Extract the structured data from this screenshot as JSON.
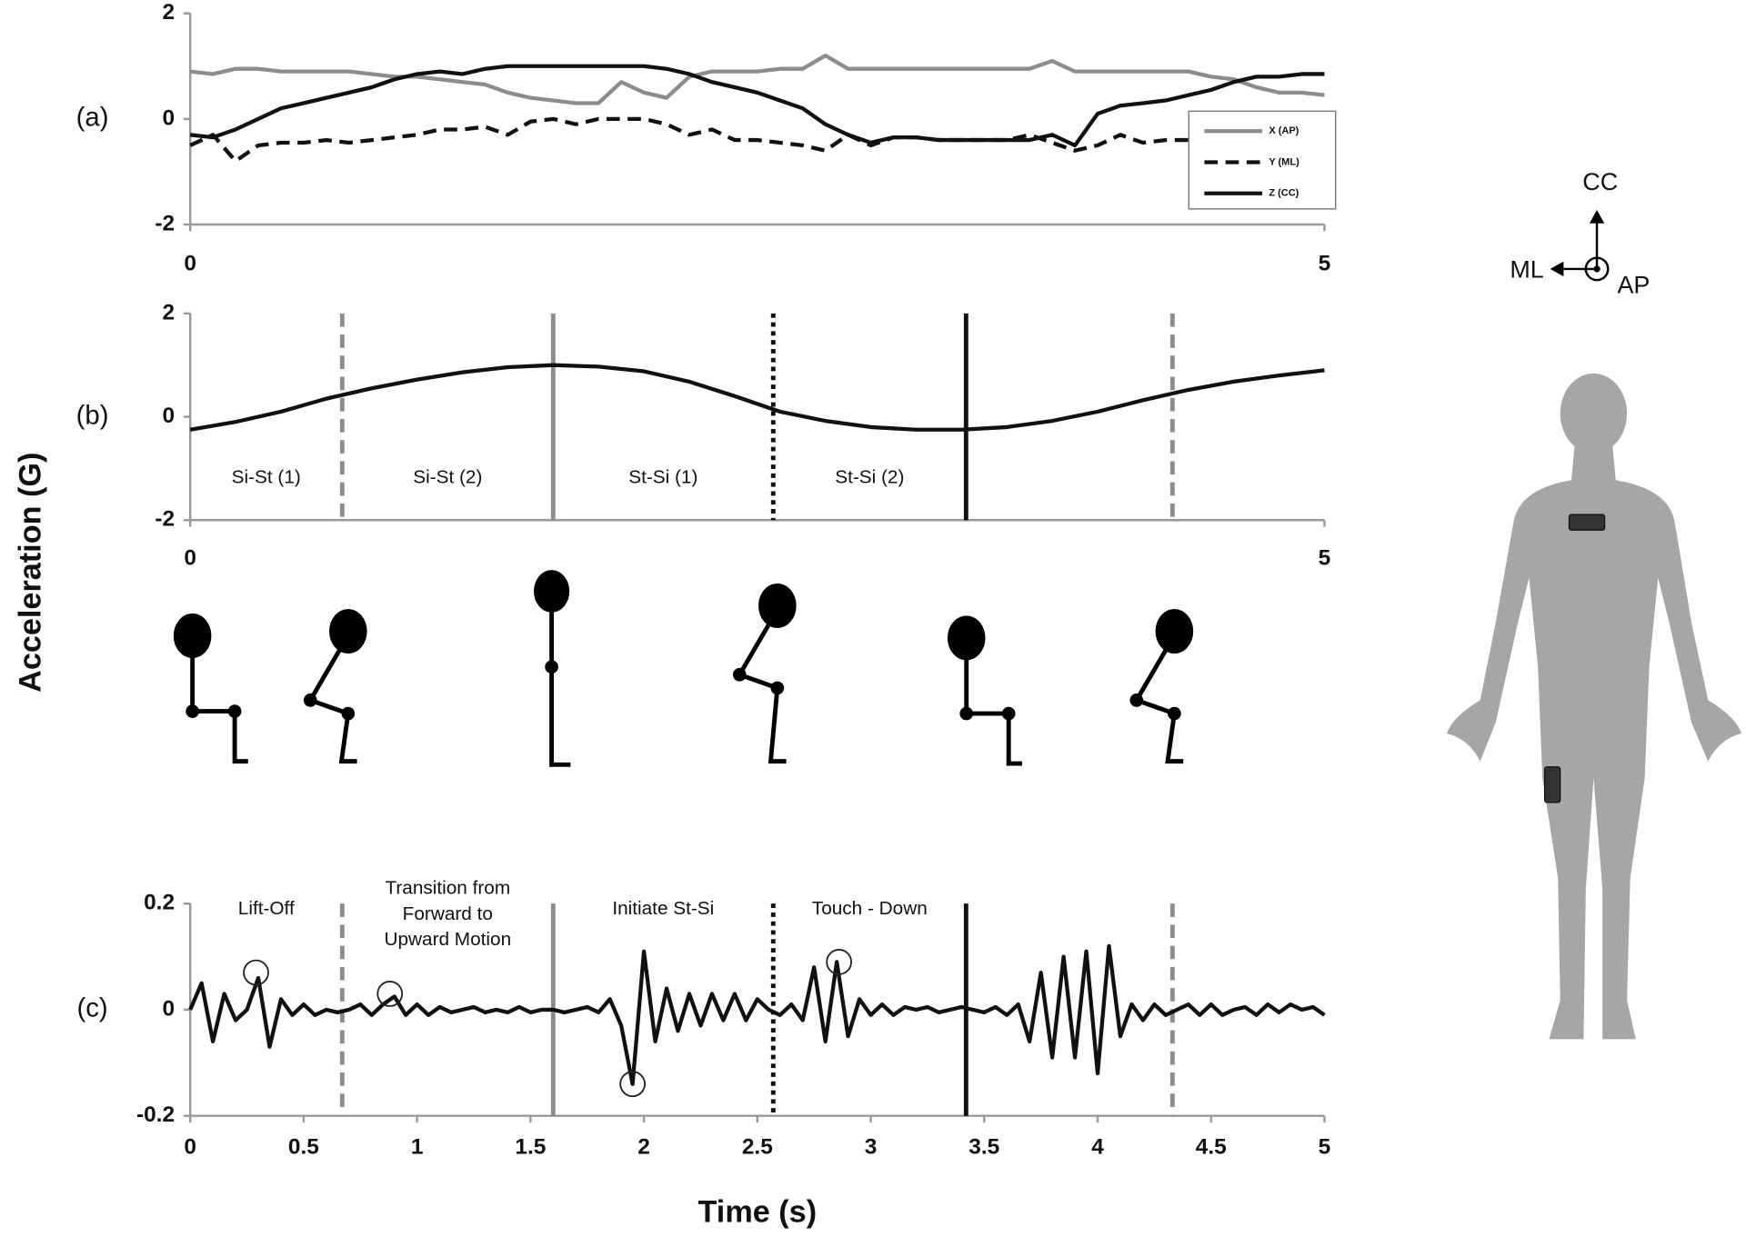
{
  "figure": {
    "ylabel": "Acceleration (G)",
    "xlabel": "Time (s)"
  },
  "diagram": {
    "labels": [
      "CC",
      "ML",
      "AP"
    ]
  },
  "chart_data": [
    {
      "type": "line",
      "label": "(a)",
      "xlim": [
        0,
        5
      ],
      "xticks": [
        0,
        5
      ],
      "ylim": [
        -2,
        2
      ],
      "yticks": [
        -2,
        0,
        2
      ],
      "legend": "upper right",
      "x": [
        0,
        0.1,
        0.2,
        0.3,
        0.4,
        0.5,
        0.6,
        0.7,
        0.8,
        0.9,
        1,
        1.1,
        1.2,
        1.3,
        1.4,
        1.5,
        1.6,
        1.7,
        1.8,
        1.9,
        2,
        2.1,
        2.2,
        2.3,
        2.4,
        2.5,
        2.6,
        2.7,
        2.8,
        2.9,
        3,
        3.1,
        3.2,
        3.3,
        3.4,
        3.5,
        3.6,
        3.7,
        3.8,
        3.9,
        4,
        4.1,
        4.2,
        4.3,
        4.4,
        4.5,
        4.6,
        4.7,
        4.8,
        4.9,
        5
      ],
      "series": [
        {
          "name": "X (AP)",
          "color": "#8c8c8c",
          "dash": "solid",
          "values": [
            0.9,
            0.85,
            0.95,
            0.95,
            0.9,
            0.9,
            0.9,
            0.9,
            0.85,
            0.8,
            0.8,
            0.75,
            0.7,
            0.65,
            0.5,
            0.4,
            0.35,
            0.3,
            0.3,
            0.7,
            0.5,
            0.4,
            0.8,
            0.9,
            0.9,
            0.9,
            0.95,
            0.95,
            1.2,
            0.95,
            0.95,
            0.95,
            0.95,
            0.95,
            0.95,
            0.95,
            0.95,
            0.95,
            1.1,
            0.9,
            0.9,
            0.9,
            0.9,
            0.9,
            0.9,
            0.8,
            0.75,
            0.6,
            0.5,
            0.5,
            0.45
          ]
        },
        {
          "name": "Y (ML)",
          "color": "#111111",
          "dash": "dashed",
          "values": [
            -0.5,
            -0.3,
            -0.8,
            -0.5,
            -0.45,
            -0.45,
            -0.4,
            -0.45,
            -0.4,
            -0.35,
            -0.3,
            -0.2,
            -0.2,
            -0.15,
            -0.3,
            -0.05,
            0,
            -0.1,
            0,
            0,
            0,
            -0.1,
            -0.3,
            -0.2,
            -0.4,
            -0.4,
            -0.45,
            -0.5,
            -0.6,
            -0.3,
            -0.5,
            -0.35,
            -0.35,
            -0.4,
            -0.4,
            -0.4,
            -0.4,
            -0.3,
            -0.45,
            -0.6,
            -0.5,
            -0.3,
            -0.45,
            -0.4,
            -0.4,
            -0.35,
            -0.35,
            -0.35,
            -0.35,
            -0.3,
            -0.3
          ]
        },
        {
          "name": "Z (CC)",
          "color": "#111111",
          "dash": "solid",
          "values": [
            -0.3,
            -0.35,
            -0.2,
            0,
            0.2,
            0.3,
            0.4,
            0.5,
            0.6,
            0.75,
            0.85,
            0.9,
            0.85,
            0.95,
            1,
            1,
            1,
            1,
            1,
            1,
            1,
            0.95,
            0.85,
            0.7,
            0.6,
            0.5,
            0.35,
            0.2,
            -0.1,
            -0.3,
            -0.45,
            -0.35,
            -0.35,
            -0.4,
            -0.4,
            -0.4,
            -0.4,
            -0.4,
            -0.3,
            -0.5,
            0.1,
            0.25,
            0.3,
            0.35,
            0.45,
            0.55,
            0.7,
            0.8,
            0.8,
            0.85,
            0.85
          ]
        }
      ]
    },
    {
      "type": "line",
      "label": "(b)",
      "xlim": [
        0,
        5
      ],
      "xticks": [
        0,
        5
      ],
      "ylim": [
        -2,
        2
      ],
      "yticks": [
        -2,
        0,
        2
      ],
      "x": [
        0,
        0.2,
        0.4,
        0.6,
        0.8,
        1,
        1.2,
        1.4,
        1.6,
        1.8,
        2,
        2.2,
        2.4,
        2.6,
        2.8,
        3,
        3.2,
        3.4,
        3.6,
        3.8,
        4,
        4.2,
        4.4,
        4.6,
        4.8,
        5
      ],
      "series": [
        {
          "color": "#111111",
          "dash": "solid",
          "values": [
            -0.25,
            -0.1,
            0.1,
            0.35,
            0.55,
            0.72,
            0.86,
            0.96,
            1,
            0.97,
            0.88,
            0.68,
            0.4,
            0.1,
            -0.08,
            -0.2,
            -0.25,
            -0.25,
            -0.2,
            -0.08,
            0.1,
            0.32,
            0.52,
            0.68,
            0.8,
            0.9
          ]
        }
      ],
      "events": [
        {
          "x": 0.67,
          "color": "#8c8c8c",
          "dash": "dashed"
        },
        {
          "x": 1.6,
          "color": "#8c8c8c",
          "dash": "solid"
        },
        {
          "x": 2.57,
          "color": "#111111",
          "dash": "dotted"
        },
        {
          "x": 3.42,
          "color": "#111111",
          "dash": "solid"
        },
        {
          "x": 4.33,
          "color": "#8c8c8c",
          "dash": "dashed"
        }
      ],
      "annotations": [
        [
          "Si-St (1)"
        ],
        [
          "Si-St (2)"
        ],
        [
          "St-Si (1)"
        ],
        [
          "St-Si (2)"
        ]
      ]
    },
    {
      "type": "line",
      "label": "(c)",
      "xlim": [
        0,
        5
      ],
      "xticks": [
        0,
        0.5,
        1,
        1.5,
        2,
        2.5,
        3,
        3.5,
        4,
        4.5,
        5
      ],
      "ylim": [
        -0.2,
        0.2
      ],
      "yticks": [
        -0.2,
        0,
        0.2
      ],
      "x": [
        0,
        0.05,
        0.1,
        0.15,
        0.2,
        0.25,
        0.3,
        0.35,
        0.4,
        0.45,
        0.5,
        0.55,
        0.6,
        0.65,
        0.7,
        0.75,
        0.8,
        0.85,
        0.9,
        0.95,
        1,
        1.05,
        1.1,
        1.15,
        1.2,
        1.25,
        1.3,
        1.35,
        1.4,
        1.45,
        1.5,
        1.55,
        1.6,
        1.65,
        1.7,
        1.75,
        1.8,
        1.85,
        1.9,
        1.95,
        2,
        2.05,
        2.1,
        2.15,
        2.2,
        2.25,
        2.3,
        2.35,
        2.4,
        2.45,
        2.5,
        2.55,
        2.6,
        2.65,
        2.7,
        2.75,
        2.8,
        2.85,
        2.9,
        2.95,
        3,
        3.05,
        3.1,
        3.15,
        3.2,
        3.25,
        3.3,
        3.35,
        3.4,
        3.45,
        3.5,
        3.55,
        3.6,
        3.65,
        3.7,
        3.75,
        3.8,
        3.85,
        3.9,
        3.95,
        4,
        4.05,
        4.1,
        4.15,
        4.2,
        4.25,
        4.3,
        4.35,
        4.4,
        4.45,
        4.5,
        4.55,
        4.6,
        4.65,
        4.7,
        4.75,
        4.8,
        4.85,
        4.9,
        4.95,
        5
      ],
      "series": [
        {
          "color": "#111111",
          "dash": "solid",
          "values": [
            0,
            0.05,
            -0.06,
            0.03,
            -0.02,
            0,
            0.06,
            -0.07,
            0.02,
            -0.01,
            0.01,
            -0.01,
            0,
            -0.005,
            0,
            0.01,
            -0.01,
            0.01,
            0.025,
            -0.01,
            0.01,
            -0.01,
            0.005,
            -0.005,
            0,
            0.005,
            -0.005,
            0,
            -0.005,
            0.005,
            -0.005,
            0,
            0,
            -0.005,
            0,
            0.005,
            -0.005,
            0.02,
            -0.03,
            -0.14,
            0.11,
            -0.06,
            0.04,
            -0.04,
            0.03,
            -0.03,
            0.03,
            -0.02,
            0.03,
            -0.02,
            0.02,
            0,
            -0.01,
            0.01,
            -0.02,
            0.08,
            -0.06,
            0.09,
            -0.05,
            0.02,
            -0.01,
            0.01,
            -0.01,
            0.005,
            0,
            0.005,
            -0.005,
            0,
            0.005,
            0,
            -0.005,
            0.005,
            -0.01,
            0.01,
            -0.06,
            0.07,
            -0.09,
            0.1,
            -0.09,
            0.11,
            -0.12,
            0.12,
            -0.05,
            0.01,
            -0.02,
            0.01,
            -0.01,
            0,
            0.01,
            -0.01,
            0.01,
            -0.01,
            0,
            0.005,
            -0.01,
            0.01,
            -0.005,
            0.01,
            0,
            0.005,
            -0.01
          ]
        }
      ],
      "events": [
        {
          "x": 0.67,
          "color": "#8c8c8c",
          "dash": "dashed"
        },
        {
          "x": 1.6,
          "color": "#8c8c8c",
          "dash": "solid"
        },
        {
          "x": 2.57,
          "color": "#111111",
          "dash": "dotted"
        },
        {
          "x": 3.42,
          "color": "#111111",
          "dash": "solid"
        },
        {
          "x": 4.33,
          "color": "#8c8c8c",
          "dash": "dashed"
        }
      ],
      "highlights": [
        {
          "x": 0.29,
          "y": 0.07
        },
        {
          "x": 0.88,
          "y": 0.03
        },
        {
          "x": 1.95,
          "y": -0.14
        },
        {
          "x": 2.86,
          "y": 0.09
        }
      ],
      "annotations": [
        [
          "Lift-Off"
        ],
        [
          "Transition from",
          "Forward to",
          "Upward Motion"
        ],
        [
          "Initiate St-Si"
        ],
        [
          "Touch - Down"
        ]
      ]
    }
  ]
}
